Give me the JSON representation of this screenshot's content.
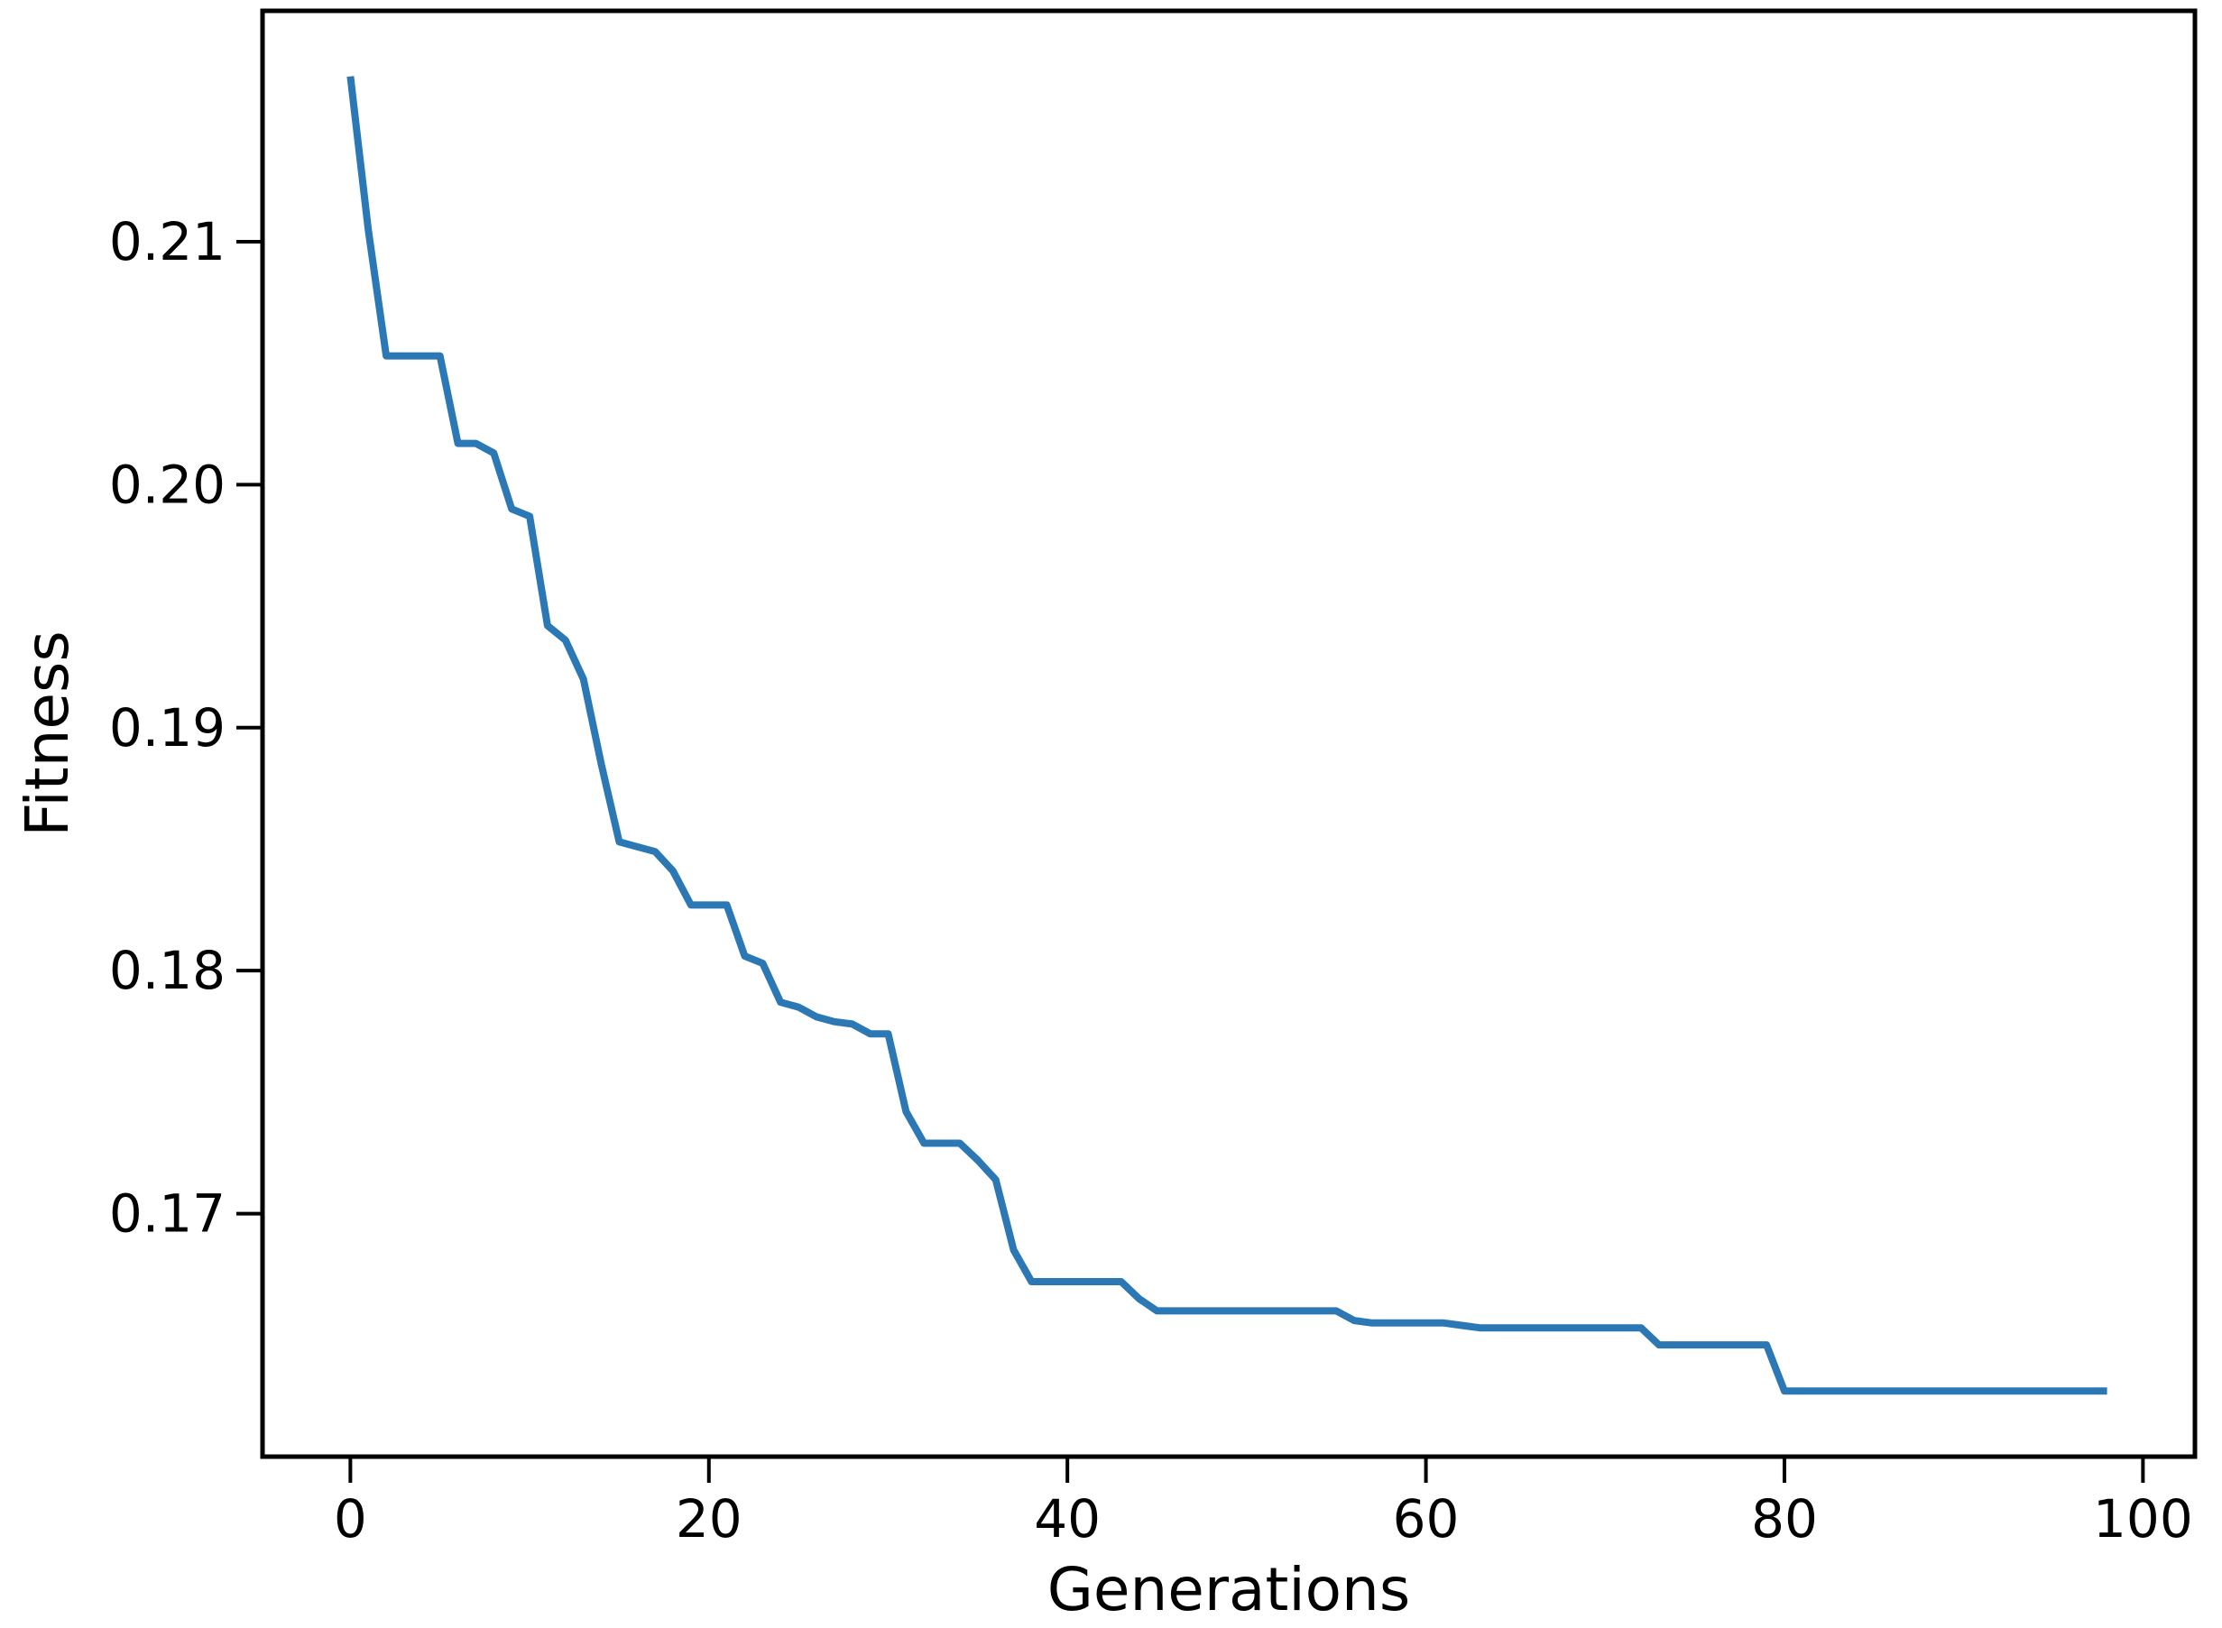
{
  "page": {
    "background": "#ffffff"
  },
  "chart_data": {
    "type": "line",
    "title": "",
    "xlabel": "Generations",
    "ylabel": "Fitness",
    "x_ticks": [
      0,
      20,
      40,
      60,
      80,
      100
    ],
    "y_tick_values": [
      0.21,
      0.2,
      0.19,
      0.18,
      0.17
    ],
    "y_tick_labels": [
      "0.21",
      "0.20",
      "0.19",
      "0.18",
      "0.17"
    ],
    "xlim": [
      -4.9,
      102.9
    ],
    "ylim": [
      0.16,
      0.2195
    ],
    "grid": false,
    "legend": null,
    "line_color": "#2b78b5",
    "series": [
      {
        "name": "Fitness",
        "x": [
          0,
          1,
          2,
          3,
          4,
          5,
          6,
          7,
          8,
          9,
          10,
          11,
          12,
          13,
          14,
          15,
          16,
          17,
          18,
          19,
          20,
          21,
          22,
          23,
          24,
          25,
          26,
          27,
          28,
          29,
          30,
          31,
          32,
          33,
          34,
          35,
          36,
          37,
          38,
          39,
          40,
          41,
          42,
          43,
          44,
          45,
          46,
          47,
          48,
          49,
          50,
          51,
          52,
          53,
          54,
          55,
          56,
          57,
          58,
          59,
          60,
          61,
          62,
          63,
          64,
          65,
          66,
          67,
          68,
          69,
          70,
          71,
          72,
          73,
          74,
          75,
          76,
          77,
          78,
          79,
          80,
          81,
          82,
          83,
          84,
          85,
          86,
          87,
          88,
          89,
          90,
          91,
          92,
          93,
          94,
          95,
          96,
          97,
          98
        ],
        "y": [
          0.2168,
          0.2105,
          0.2053,
          0.2053,
          0.2053,
          0.2053,
          0.2017,
          0.2017,
          0.2013,
          0.199,
          0.1987,
          0.1942,
          0.1936,
          0.192,
          0.1885,
          0.1853,
          0.1851,
          0.1849,
          0.1841,
          0.1827,
          0.1827,
          0.1827,
          0.1806,
          0.1803,
          0.1787,
          0.1785,
          0.1781,
          0.1779,
          0.1778,
          0.1774,
          0.1774,
          0.1742,
          0.1729,
          0.1729,
          0.1729,
          0.1722,
          0.1714,
          0.1685,
          0.1672,
          0.1672,
          0.1672,
          0.1672,
          0.1672,
          0.1672,
          0.1665,
          0.166,
          0.166,
          0.166,
          0.166,
          0.166,
          0.166,
          0.166,
          0.166,
          0.166,
          0.166,
          0.166,
          0.1656,
          0.1655,
          0.1655,
          0.1655,
          0.1655,
          0.1655,
          0.1654,
          0.1653,
          0.1653,
          0.1653,
          0.1653,
          0.1653,
          0.1653,
          0.1653,
          0.1653,
          0.1653,
          0.1653,
          0.1646,
          0.1646,
          0.1646,
          0.1646,
          0.1646,
          0.1646,
          0.1646,
          0.1627,
          0.1627,
          0.1627,
          0.1627,
          0.1627,
          0.1627,
          0.1627,
          0.1627,
          0.1627,
          0.1627,
          0.1627,
          0.1627,
          0.1627,
          0.1627,
          0.1627,
          0.1627,
          0.1627,
          0.1627,
          0.1627
        ]
      }
    ]
  }
}
